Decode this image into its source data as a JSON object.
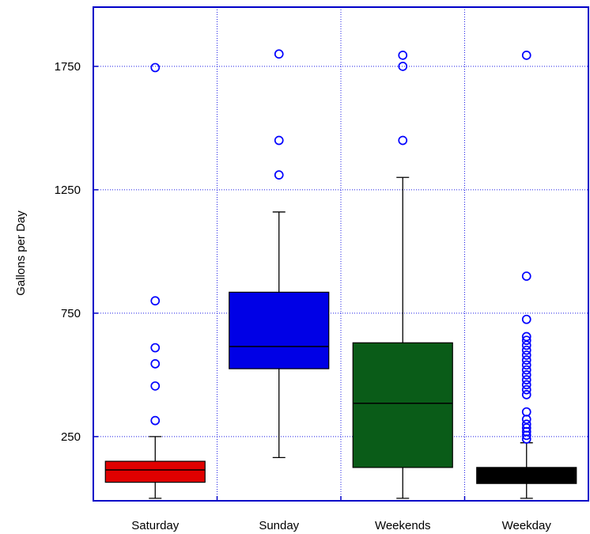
{
  "chart_data": {
    "type": "boxplot",
    "title": "",
    "xlabel": "",
    "ylabel": "Gallons per Day",
    "ylim": [
      -10,
      1990
    ],
    "yticks": [
      250,
      750,
      1250,
      1750
    ],
    "categories": [
      "Saturday",
      "Sunday",
      "Weekends",
      "Weekday"
    ],
    "grid": true,
    "boxes": [
      {
        "name": "Saturday",
        "color": "#e00000",
        "whisker_low": 0,
        "q1": 65,
        "median": 115,
        "q3": 150,
        "whisker_high": 250,
        "outliers": [
          315,
          455,
          545,
          610,
          800,
          1745
        ]
      },
      {
        "name": "Sunday",
        "color": "#0000e6",
        "whisker_low": 165,
        "q1": 525,
        "median": 615,
        "q3": 835,
        "whisker_high": 1160,
        "outliers": [
          1310,
          1450,
          1800
        ]
      },
      {
        "name": "Weekends",
        "color": "#0a5c18",
        "whisker_low": 0,
        "q1": 125,
        "median": 385,
        "q3": 630,
        "whisker_high": 1300,
        "outliers": [
          1450,
          1750,
          1795
        ]
      },
      {
        "name": "Weekday",
        "color": "#000000",
        "whisker_low": 0,
        "q1": 60,
        "median": 90,
        "q3": 125,
        "whisker_high": 225,
        "outliers": [
          240,
          255,
          270,
          285,
          300,
          320,
          350,
          420,
          440,
          460,
          480,
          500,
          520,
          540,
          560,
          580,
          600,
          620,
          640,
          655,
          725,
          900,
          1795
        ]
      }
    ]
  }
}
